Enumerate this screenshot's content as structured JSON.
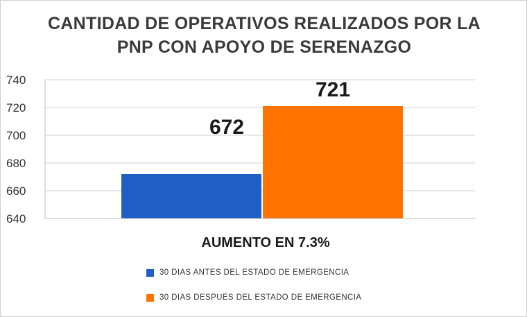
{
  "chart_data": {
    "type": "bar",
    "title_lines": [
      "CANTIDAD DE OPERATIVOS REALIZADOS POR LA",
      "PNP CON APOYO DE SERENAZGO"
    ],
    "xlabel": "AUMENTO EN 7.3%",
    "ylabel": "",
    "ylim": [
      640,
      740
    ],
    "yticks": [
      "640",
      "660",
      "680",
      "700",
      "720",
      "740"
    ],
    "grid": true,
    "legend_position": "bottom",
    "series": [
      {
        "name": "30 DIAS ANTES DEL ESTADO DE EMERGENCIA",
        "value": 672,
        "data_label": "672",
        "color": "#1f5fc4"
      },
      {
        "name": "30 DIAS DESPUES DEL ESTADO DE EMERGENCIA",
        "value": 721,
        "data_label": "721",
        "color": "#ff7400"
      }
    ]
  }
}
